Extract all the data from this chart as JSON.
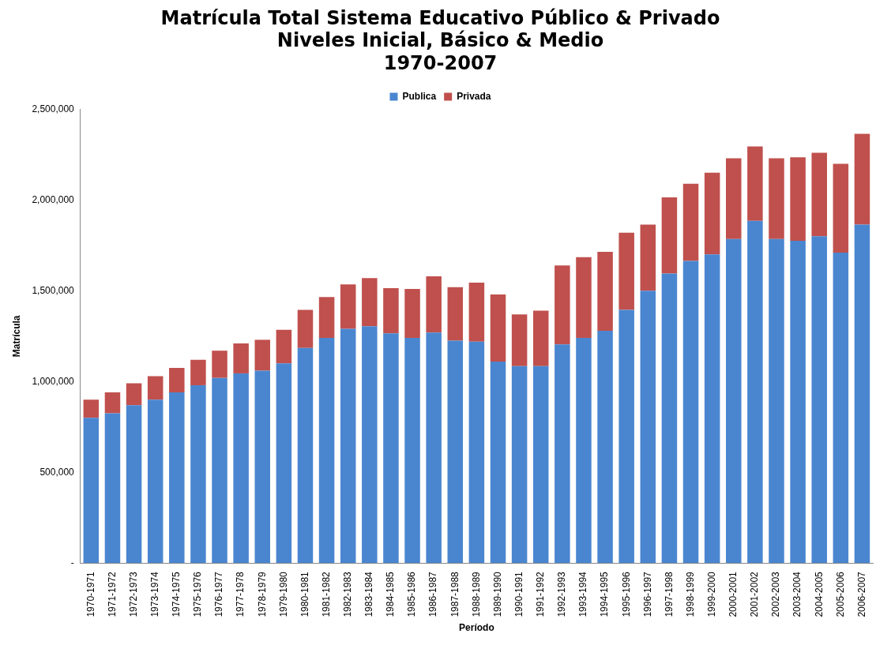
{
  "chart_data": {
    "type": "bar",
    "stacked": true,
    "title": "Matrícula Total Sistema Educativo Público & Privado\nNiveles Inicial, Básico & Medio\n1970-2007",
    "xlabel": "Período",
    "ylabel": "Matrícula",
    "legend": "top",
    "grid": false,
    "categories": [
      "1970-1971",
      "1971-1972",
      "1972-1973",
      "1973-1974",
      "1974-1975",
      "1975-1976",
      "1976-1977",
      "1977-1978",
      "1978-1979",
      "1979-1980",
      "1980-1981",
      "1981-1982",
      "1982-1983",
      "1983-1984",
      "1984-1985",
      "1985-1986",
      "1986-1987",
      "1987-1988",
      "1988-1989",
      "1989-1990",
      "1990-1991",
      "1991-1992",
      "1992-1993",
      "1993-1994",
      "1994-1995",
      "1995-1996",
      "1996-1997",
      "1997-1998",
      "1998-1999",
      "1999-2000",
      "2000-2001",
      "2001-2002",
      "2002-2003",
      "2003-2004",
      "2004-2005",
      "2005-2006",
      "2006-2007"
    ],
    "ylim": [
      0,
      2500000
    ],
    "yticks": [
      {
        "value": 0,
        "label": "-"
      },
      {
        "value": 500000,
        "label": "500,000"
      },
      {
        "value": 1000000,
        "label": "1,000,000"
      },
      {
        "value": 1500000,
        "label": "1,500,000"
      },
      {
        "value": 2000000,
        "label": "2,000,000"
      },
      {
        "value": 2500000,
        "label": "2,500,000"
      }
    ],
    "series": [
      {
        "name": "Publica",
        "color": "#4a86d0",
        "values": [
          800000,
          825000,
          870000,
          900000,
          940000,
          980000,
          1020000,
          1045000,
          1060000,
          1100000,
          1185000,
          1240000,
          1290000,
          1305000,
          1265000,
          1240000,
          1270000,
          1225000,
          1220000,
          1110000,
          1085000,
          1085000,
          1205000,
          1240000,
          1280000,
          1395000,
          1500000,
          1595000,
          1665000,
          1700000,
          1785000,
          1885000,
          1785000,
          1775000,
          1800000,
          1710000,
          1865000
        ]
      },
      {
        "name": "Privada",
        "color": "#c0504d",
        "values": [
          100000,
          115000,
          120000,
          130000,
          135000,
          140000,
          150000,
          165000,
          170000,
          185000,
          210000,
          225000,
          245000,
          265000,
          250000,
          270000,
          310000,
          295000,
          325000,
          370000,
          285000,
          305000,
          435000,
          445000,
          435000,
          425000,
          365000,
          420000,
          425000,
          450000,
          445000,
          410000,
          445000,
          460000,
          460000,
          490000,
          500000
        ]
      }
    ]
  }
}
